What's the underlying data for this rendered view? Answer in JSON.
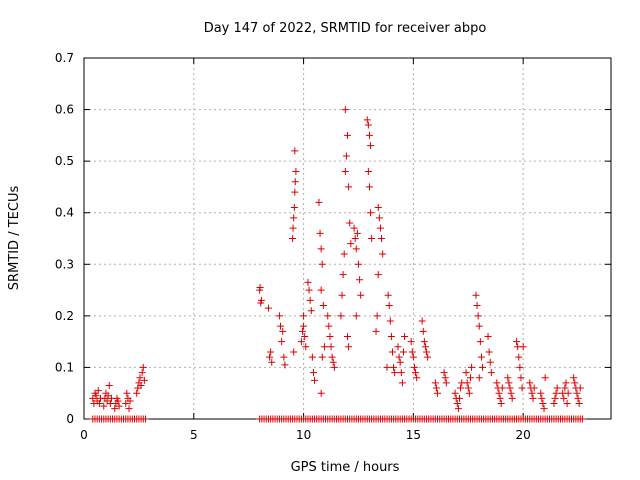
{
  "chart_data": {
    "type": "scatter",
    "title": "Day 147 of 2022, SRMTID for receiver abpo",
    "xlabel": "GPS time / hours",
    "ylabel": "SRMTID / TECUs",
    "xlim": [
      0,
      24
    ],
    "ylim": [
      0,
      0.7
    ],
    "xticks": [
      0,
      5,
      10,
      15,
      20
    ],
    "yticks": [
      0,
      0.1,
      0.2,
      0.3,
      0.4,
      0.5,
      0.6,
      0.7
    ],
    "grid": true,
    "marker": "+",
    "color": "#dd0000",
    "series": [
      {
        "name": "SRMTID",
        "points": [
          [
            0.4,
            0.04
          ],
          [
            0.45,
            0.03
          ],
          [
            0.5,
            0.05
          ],
          [
            0.55,
            0.045
          ],
          [
            0.6,
            0.035
          ],
          [
            0.65,
            0.055
          ],
          [
            0.7,
            0.03
          ],
          [
            0.75,
            0.04
          ],
          [
            0.9,
            0.025
          ],
          [
            0.95,
            0.04
          ],
          [
            1.0,
            0.05
          ],
          [
            1.05,
            0.035
          ],
          [
            1.1,
            0.045
          ],
          [
            1.15,
            0.065
          ],
          [
            1.2,
            0.03
          ],
          [
            1.25,
            0.04
          ],
          [
            1.4,
            0.02
          ],
          [
            1.45,
            0.03
          ],
          [
            1.5,
            0.04
          ],
          [
            1.55,
            0.035
          ],
          [
            1.6,
            0.025
          ],
          [
            1.9,
            0.03
          ],
          [
            1.95,
            0.05
          ],
          [
            2.0,
            0.04
          ],
          [
            2.05,
            0.02
          ],
          [
            2.1,
            0.035
          ],
          [
            2.4,
            0.05
          ],
          [
            2.45,
            0.06
          ],
          [
            2.5,
            0.07
          ],
          [
            2.55,
            0.08
          ],
          [
            2.6,
            0.065
          ],
          [
            2.65,
            0.09
          ],
          [
            2.7,
            0.1
          ],
          [
            2.75,
            0.075
          ],
          [
            8.0,
            0.25
          ],
          [
            8.02,
            0.255
          ],
          [
            8.05,
            0.225
          ],
          [
            8.08,
            0.23
          ],
          [
            8.4,
            0.215
          ],
          [
            8.45,
            0.12
          ],
          [
            8.5,
            0.13
          ],
          [
            8.55,
            0.11
          ],
          [
            8.9,
            0.2
          ],
          [
            8.95,
            0.18
          ],
          [
            9.0,
            0.15
          ],
          [
            9.05,
            0.17
          ],
          [
            9.1,
            0.12
          ],
          [
            9.15,
            0.105
          ],
          [
            9.5,
            0.35
          ],
          [
            9.52,
            0.37
          ],
          [
            9.55,
            0.39
          ],
          [
            9.58,
            0.41
          ],
          [
            9.6,
            0.44
          ],
          [
            9.62,
            0.46
          ],
          [
            9.65,
            0.48
          ],
          [
            9.6,
            0.52
          ],
          [
            9.55,
            0.13
          ],
          [
            9.9,
            0.15
          ],
          [
            9.95,
            0.17
          ],
          [
            10.0,
            0.18
          ],
          [
            10.05,
            0.16
          ],
          [
            10.1,
            0.14
          ],
          [
            10.0,
            0.2
          ],
          [
            10.2,
            0.265
          ],
          [
            10.25,
            0.25
          ],
          [
            10.3,
            0.23
          ],
          [
            10.35,
            0.21
          ],
          [
            10.4,
            0.12
          ],
          [
            10.45,
            0.09
          ],
          [
            10.5,
            0.075
          ],
          [
            10.7,
            0.42
          ],
          [
            10.75,
            0.36
          ],
          [
            10.8,
            0.33
          ],
          [
            10.85,
            0.3
          ],
          [
            10.8,
            0.25
          ],
          [
            10.9,
            0.22
          ],
          [
            10.95,
            0.14
          ],
          [
            10.85,
            0.12
          ],
          [
            10.8,
            0.05
          ],
          [
            11.1,
            0.2
          ],
          [
            11.15,
            0.18
          ],
          [
            11.2,
            0.16
          ],
          [
            11.25,
            0.14
          ],
          [
            11.3,
            0.12
          ],
          [
            11.35,
            0.11
          ],
          [
            11.4,
            0.1
          ],
          [
            11.7,
            0.2
          ],
          [
            11.75,
            0.24
          ],
          [
            11.8,
            0.28
          ],
          [
            11.85,
            0.32
          ],
          [
            11.9,
            0.48
          ],
          [
            11.95,
            0.51
          ],
          [
            12.0,
            0.55
          ],
          [
            11.9,
            0.6
          ],
          [
            12.05,
            0.45
          ],
          [
            12.1,
            0.38
          ],
          [
            12.15,
            0.34
          ],
          [
            12.0,
            0.16
          ],
          [
            12.05,
            0.14
          ],
          [
            12.3,
            0.37
          ],
          [
            12.35,
            0.35
          ],
          [
            12.4,
            0.33
          ],
          [
            12.45,
            0.36
          ],
          [
            12.5,
            0.3
          ],
          [
            12.55,
            0.27
          ],
          [
            12.6,
            0.24
          ],
          [
            12.4,
            0.2
          ],
          [
            12.9,
            0.58
          ],
          [
            12.95,
            0.57
          ],
          [
            13.0,
            0.55
          ],
          [
            13.05,
            0.53
          ],
          [
            12.95,
            0.48
          ],
          [
            13.0,
            0.45
          ],
          [
            13.05,
            0.4
          ],
          [
            13.1,
            0.35
          ],
          [
            13.4,
            0.41
          ],
          [
            13.45,
            0.39
          ],
          [
            13.5,
            0.37
          ],
          [
            13.55,
            0.35
          ],
          [
            13.6,
            0.32
          ],
          [
            13.4,
            0.28
          ],
          [
            13.35,
            0.2
          ],
          [
            13.3,
            0.17
          ],
          [
            13.8,
            0.1
          ],
          [
            13.85,
            0.24
          ],
          [
            13.9,
            0.22
          ],
          [
            13.95,
            0.19
          ],
          [
            14.0,
            0.16
          ],
          [
            14.05,
            0.13
          ],
          [
            14.1,
            0.1
          ],
          [
            14.15,
            0.09
          ],
          [
            14.3,
            0.14
          ],
          [
            14.35,
            0.12
          ],
          [
            14.4,
            0.11
          ],
          [
            14.45,
            0.09
          ],
          [
            14.5,
            0.07
          ],
          [
            14.55,
            0.13
          ],
          [
            14.6,
            0.16
          ],
          [
            14.9,
            0.15
          ],
          [
            14.95,
            0.13
          ],
          [
            15.0,
            0.12
          ],
          [
            15.05,
            0.1
          ],
          [
            15.1,
            0.09
          ],
          [
            15.15,
            0.08
          ],
          [
            15.4,
            0.19
          ],
          [
            15.45,
            0.17
          ],
          [
            15.5,
            0.15
          ],
          [
            15.55,
            0.14
          ],
          [
            15.6,
            0.13
          ],
          [
            15.65,
            0.12
          ],
          [
            16.0,
            0.07
          ],
          [
            16.05,
            0.06
          ],
          [
            16.1,
            0.05
          ],
          [
            16.4,
            0.09
          ],
          [
            16.45,
            0.08
          ],
          [
            16.5,
            0.07
          ],
          [
            16.9,
            0.05
          ],
          [
            16.95,
            0.04
          ],
          [
            17.0,
            0.03
          ],
          [
            17.05,
            0.02
          ],
          [
            17.1,
            0.04
          ],
          [
            17.15,
            0.06
          ],
          [
            17.2,
            0.07
          ],
          [
            17.4,
            0.09
          ],
          [
            17.45,
            0.07
          ],
          [
            17.5,
            0.06
          ],
          [
            17.55,
            0.05
          ],
          [
            17.6,
            0.08
          ],
          [
            17.65,
            0.1
          ],
          [
            17.85,
            0.24
          ],
          [
            17.9,
            0.22
          ],
          [
            17.95,
            0.2
          ],
          [
            18.0,
            0.18
          ],
          [
            18.05,
            0.15
          ],
          [
            18.1,
            0.12
          ],
          [
            18.15,
            0.1
          ],
          [
            18.0,
            0.08
          ],
          [
            18.4,
            0.16
          ],
          [
            18.45,
            0.13
          ],
          [
            18.5,
            0.11
          ],
          [
            18.55,
            0.09
          ],
          [
            18.8,
            0.07
          ],
          [
            18.85,
            0.06
          ],
          [
            18.9,
            0.05
          ],
          [
            18.95,
            0.04
          ],
          [
            19.0,
            0.03
          ],
          [
            19.05,
            0.06
          ],
          [
            19.3,
            0.08
          ],
          [
            19.35,
            0.07
          ],
          [
            19.4,
            0.06
          ],
          [
            19.45,
            0.05
          ],
          [
            19.5,
            0.04
          ],
          [
            19.7,
            0.15
          ],
          [
            19.75,
            0.14
          ],
          [
            19.8,
            0.12
          ],
          [
            19.85,
            0.1
          ],
          [
            19.9,
            0.08
          ],
          [
            19.95,
            0.06
          ],
          [
            20.0,
            0.14
          ],
          [
            20.3,
            0.07
          ],
          [
            20.35,
            0.06
          ],
          [
            20.4,
            0.05
          ],
          [
            20.45,
            0.04
          ],
          [
            20.5,
            0.06
          ],
          [
            20.8,
            0.05
          ],
          [
            20.85,
            0.04
          ],
          [
            20.9,
            0.03
          ],
          [
            20.95,
            0.02
          ],
          [
            21.0,
            0.08
          ],
          [
            21.4,
            0.03
          ],
          [
            21.45,
            0.04
          ],
          [
            21.5,
            0.05
          ],
          [
            21.55,
            0.06
          ],
          [
            21.8,
            0.05
          ],
          [
            21.85,
            0.04
          ],
          [
            21.9,
            0.06
          ],
          [
            21.95,
            0.07
          ],
          [
            22.0,
            0.03
          ],
          [
            22.05,
            0.05
          ],
          [
            22.3,
            0.08
          ],
          [
            22.35,
            0.07
          ],
          [
            22.4,
            0.06
          ],
          [
            22.45,
            0.05
          ],
          [
            22.5,
            0.04
          ],
          [
            22.55,
            0.03
          ],
          [
            22.6,
            0.06
          ]
        ],
        "zero_segments": [
          [
            0.4,
            2.8
          ],
          [
            8.0,
            22.7
          ]
        ]
      }
    ]
  }
}
